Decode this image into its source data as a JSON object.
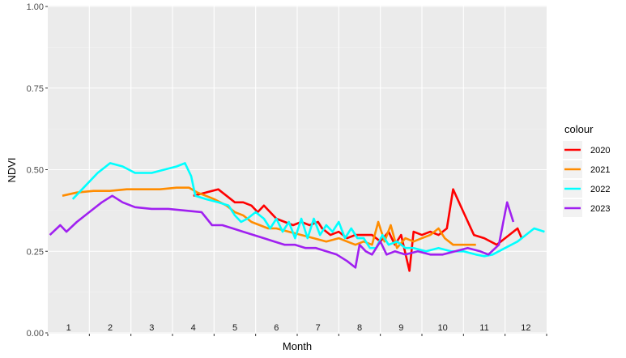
{
  "chart_data": {
    "type": "line",
    "xlabel": "Month",
    "ylabel": "NDVI",
    "ylim": [
      0,
      1
    ],
    "yticks": [
      "0.00",
      "0.25",
      "0.50",
      "0.75",
      "1.00"
    ],
    "xticks": [
      "1",
      "2",
      "3",
      "4",
      "5",
      "6",
      "7",
      "8",
      "9",
      "10",
      "11",
      "12"
    ],
    "grid": true,
    "legend": {
      "title": "colour",
      "position": "right"
    },
    "series": [
      {
        "name": "2020",
        "color": "#ff0000",
        "points": [
          [
            4.0,
            0.42
          ],
          [
            4.3,
            0.43
          ],
          [
            4.6,
            0.44
          ],
          [
            4.8,
            0.42
          ],
          [
            5.0,
            0.4
          ],
          [
            5.2,
            0.4
          ],
          [
            5.4,
            0.39
          ],
          [
            5.55,
            0.37
          ],
          [
            5.7,
            0.39
          ],
          [
            5.85,
            0.37
          ],
          [
            6.0,
            0.35
          ],
          [
            6.2,
            0.34
          ],
          [
            6.4,
            0.33
          ],
          [
            6.6,
            0.34
          ],
          [
            6.8,
            0.33
          ],
          [
            7.0,
            0.34
          ],
          [
            7.1,
            0.32
          ],
          [
            7.3,
            0.3
          ],
          [
            7.5,
            0.31
          ],
          [
            7.7,
            0.29
          ],
          [
            7.9,
            0.3
          ],
          [
            8.1,
            0.3
          ],
          [
            8.3,
            0.3
          ],
          [
            8.5,
            0.28
          ],
          [
            8.7,
            0.31
          ],
          [
            8.85,
            0.27
          ],
          [
            9.0,
            0.3
          ],
          [
            9.2,
            0.19
          ],
          [
            9.3,
            0.31
          ],
          [
            9.5,
            0.3
          ],
          [
            9.7,
            0.31
          ],
          [
            9.9,
            0.3
          ],
          [
            10.1,
            0.32
          ],
          [
            10.25,
            0.44
          ],
          [
            10.5,
            0.37
          ],
          [
            10.75,
            0.3
          ],
          [
            11.0,
            0.29
          ],
          [
            11.3,
            0.27
          ],
          [
            11.6,
            0.3
          ],
          [
            11.8,
            0.32
          ],
          [
            11.9,
            0.29
          ]
        ]
      },
      {
        "name": "2021",
        "color": "#ff8c00",
        "points": [
          [
            0.85,
            0.42
          ],
          [
            1.2,
            0.43
          ],
          [
            1.6,
            0.435
          ],
          [
            2.0,
            0.435
          ],
          [
            2.4,
            0.44
          ],
          [
            2.8,
            0.44
          ],
          [
            3.2,
            0.44
          ],
          [
            3.6,
            0.445
          ],
          [
            3.9,
            0.445
          ],
          [
            4.1,
            0.43
          ],
          [
            4.3,
            0.42
          ],
          [
            4.5,
            0.41
          ],
          [
            4.8,
            0.39
          ],
          [
            5.0,
            0.37
          ],
          [
            5.2,
            0.36
          ],
          [
            5.4,
            0.34
          ],
          [
            5.6,
            0.33
          ],
          [
            5.8,
            0.32
          ],
          [
            6.0,
            0.32
          ],
          [
            6.3,
            0.31
          ],
          [
            6.6,
            0.3
          ],
          [
            6.9,
            0.29
          ],
          [
            7.2,
            0.28
          ],
          [
            7.5,
            0.29
          ],
          [
            7.7,
            0.28
          ],
          [
            7.9,
            0.27
          ],
          [
            8.1,
            0.28
          ],
          [
            8.3,
            0.27
          ],
          [
            8.45,
            0.34
          ],
          [
            8.6,
            0.28
          ],
          [
            8.75,
            0.33
          ],
          [
            8.9,
            0.26
          ],
          [
            9.1,
            0.29
          ],
          [
            9.3,
            0.28
          ],
          [
            9.5,
            0.29
          ],
          [
            9.7,
            0.3
          ],
          [
            9.9,
            0.32
          ],
          [
            10.05,
            0.29
          ],
          [
            10.25,
            0.27
          ],
          [
            10.5,
            0.27
          ],
          [
            10.8,
            0.27
          ]
        ]
      },
      {
        "name": "2022",
        "color": "#00ffff",
        "points": [
          [
            1.1,
            0.41
          ],
          [
            1.4,
            0.45
          ],
          [
            1.7,
            0.49
          ],
          [
            2.0,
            0.52
          ],
          [
            2.3,
            0.51
          ],
          [
            2.6,
            0.49
          ],
          [
            2.8,
            0.49
          ],
          [
            3.0,
            0.49
          ],
          [
            3.3,
            0.5
          ],
          [
            3.6,
            0.51
          ],
          [
            3.8,
            0.52
          ],
          [
            3.95,
            0.48
          ],
          [
            4.05,
            0.42
          ],
          [
            4.3,
            0.41
          ],
          [
            4.6,
            0.4
          ],
          [
            4.85,
            0.39
          ],
          [
            5.0,
            0.36
          ],
          [
            5.15,
            0.34
          ],
          [
            5.3,
            0.35
          ],
          [
            5.5,
            0.37
          ],
          [
            5.7,
            0.35
          ],
          [
            5.85,
            0.32
          ],
          [
            6.0,
            0.35
          ],
          [
            6.15,
            0.31
          ],
          [
            6.3,
            0.34
          ],
          [
            6.45,
            0.29
          ],
          [
            6.6,
            0.35
          ],
          [
            6.75,
            0.29
          ],
          [
            6.9,
            0.35
          ],
          [
            7.05,
            0.3
          ],
          [
            7.2,
            0.33
          ],
          [
            7.35,
            0.31
          ],
          [
            7.5,
            0.34
          ],
          [
            7.65,
            0.29
          ],
          [
            7.8,
            0.32
          ],
          [
            7.95,
            0.29
          ],
          [
            8.1,
            0.29
          ],
          [
            8.25,
            0.26
          ],
          [
            8.4,
            0.26
          ],
          [
            8.55,
            0.3
          ],
          [
            8.7,
            0.27
          ],
          [
            8.9,
            0.28
          ],
          [
            9.1,
            0.26
          ],
          [
            9.3,
            0.26
          ],
          [
            9.6,
            0.25
          ],
          [
            9.9,
            0.26
          ],
          [
            10.2,
            0.25
          ],
          [
            10.5,
            0.25
          ],
          [
            10.8,
            0.24
          ],
          [
            11.0,
            0.235
          ],
          [
            11.2,
            0.24
          ],
          [
            11.5,
            0.26
          ],
          [
            11.8,
            0.28
          ],
          [
            12.0,
            0.3
          ],
          [
            12.2,
            0.32
          ],
          [
            12.45,
            0.31
          ]
        ]
      },
      {
        "name": "2023",
        "color": "#a020f0",
        "points": [
          [
            0.55,
            0.3
          ],
          [
            0.8,
            0.33
          ],
          [
            0.95,
            0.31
          ],
          [
            1.2,
            0.34
          ],
          [
            1.5,
            0.37
          ],
          [
            1.8,
            0.4
          ],
          [
            2.05,
            0.42
          ],
          [
            2.3,
            0.4
          ],
          [
            2.6,
            0.385
          ],
          [
            3.0,
            0.38
          ],
          [
            3.4,
            0.38
          ],
          [
            3.8,
            0.375
          ],
          [
            4.2,
            0.37
          ],
          [
            4.45,
            0.33
          ],
          [
            4.7,
            0.33
          ],
          [
            4.95,
            0.32
          ],
          [
            5.2,
            0.31
          ],
          [
            5.45,
            0.3
          ],
          [
            5.7,
            0.29
          ],
          [
            5.95,
            0.28
          ],
          [
            6.2,
            0.27
          ],
          [
            6.45,
            0.27
          ],
          [
            6.7,
            0.26
          ],
          [
            6.95,
            0.26
          ],
          [
            7.2,
            0.25
          ],
          [
            7.45,
            0.24
          ],
          [
            7.7,
            0.22
          ],
          [
            7.9,
            0.2
          ],
          [
            8.0,
            0.27
          ],
          [
            8.15,
            0.25
          ],
          [
            8.3,
            0.24
          ],
          [
            8.5,
            0.28
          ],
          [
            8.65,
            0.24
          ],
          [
            8.85,
            0.25
          ],
          [
            9.1,
            0.24
          ],
          [
            9.4,
            0.25
          ],
          [
            9.7,
            0.24
          ],
          [
            10.0,
            0.24
          ],
          [
            10.3,
            0.25
          ],
          [
            10.6,
            0.26
          ],
          [
            10.9,
            0.25
          ],
          [
            11.1,
            0.24
          ],
          [
            11.35,
            0.27
          ],
          [
            11.55,
            0.4
          ],
          [
            11.7,
            0.34
          ]
        ]
      }
    ]
  }
}
